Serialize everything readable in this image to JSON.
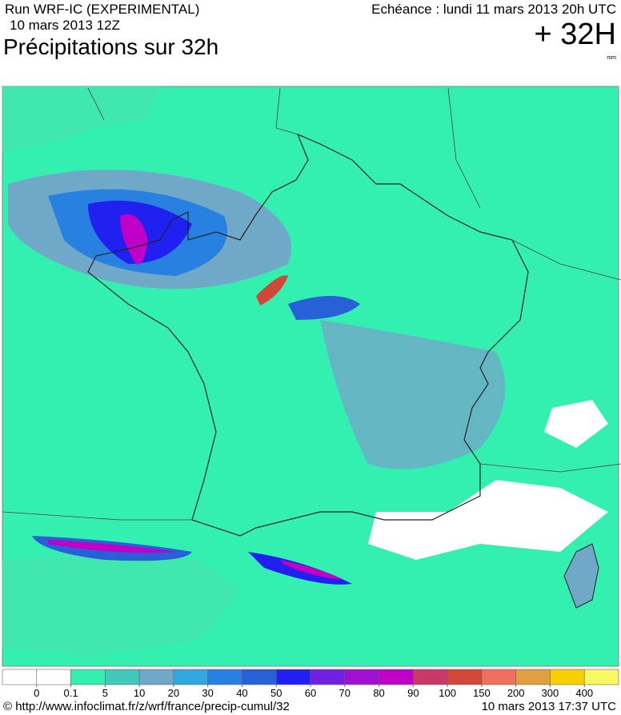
{
  "header": {
    "run": "Run WRF-IC (EXPERIMENTAL)",
    "date": "10 mars 2013 12Z",
    "title": "Précipitations sur 32h",
    "forecast": "Echéance : lundi 11 mars 2013 20h UTC",
    "lead": "+ 32H",
    "unit": "mm"
  },
  "legend": {
    "colors": [
      "#ffffff",
      "#ffffff",
      "#33f0b0",
      "#40c8b8",
      "#70a8c8",
      "#30a8e0",
      "#2880e0",
      "#2860d8",
      "#2020f0",
      "#7020e0",
      "#a010d0",
      "#c000c8",
      "#c83868",
      "#d04838",
      "#f07060",
      "#e0a040",
      "#f8d000",
      "#f8f860"
    ],
    "ticks": [
      0,
      0.1,
      5,
      10,
      20,
      30,
      40,
      50,
      60,
      70,
      80,
      90,
      100,
      150,
      200,
      300,
      400
    ]
  },
  "footer": {
    "url": "© http://www.infoclimat.fr/z/wrf/france/precip-cumul/32",
    "timestamp": "10 mars 2013 17:37 UTC"
  }
}
